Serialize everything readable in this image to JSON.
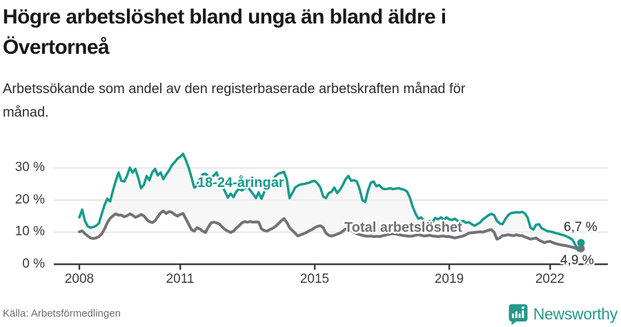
{
  "header": {
    "title_lines": [
      "Högre arbetslöshet bland unga än bland äldre i",
      "Övertorneå"
    ],
    "subtitle_lines": [
      "Arbetssökande som andel av den registerbaserade arbetskraften månad för",
      "månad."
    ]
  },
  "colors": {
    "youth": "#159a8d",
    "total": "#717176",
    "total_label": "#6e6e73",
    "band": "#f1f1f2",
    "grid": "#e4e4e4",
    "axis": "#3b3b3b",
    "brand": "#27988b",
    "end_label_text": "#2b2b2b"
  },
  "chart_data": {
    "type": "line",
    "title": "Högre arbetslöshet bland unga än bland äldre i Övertorneå",
    "subtitle": "Arbetssökande som andel av den registerbaserade arbetskraften månad för månad.",
    "x_unit": "month",
    "x_start": "2008-01",
    "x_end": "2022-12",
    "x_tick_labels": [
      "2008",
      "2011",
      "2015",
      "2019",
      "2022"
    ],
    "x_tick_years": [
      2008,
      2011,
      2015,
      2019,
      2022
    ],
    "y_tick_labels": [
      "30 %",
      "20 %",
      "10 %",
      "0 %"
    ],
    "y_ticks": [
      30,
      20,
      10,
      0
    ],
    "ylim": [
      0,
      36
    ],
    "grid": "horizontal",
    "series": [
      {
        "name": "18-24-åringar",
        "color": "#159a8d",
        "end_label": "6,7 %",
        "end_value": 6.7,
        "values": [
          14.6,
          17.0,
          13.5,
          11.8,
          11.4,
          11.6,
          12.0,
          12.8,
          15.7,
          18.5,
          20.4,
          19.6,
          23.0,
          26.0,
          28.6,
          26.0,
          25.8,
          27.5,
          30.1,
          28.6,
          29.7,
          27.0,
          23.7,
          24.7,
          27.5,
          26.2,
          28.6,
          29.7,
          27.7,
          28.6,
          26.5,
          28.0,
          29.2,
          30.8,
          31.8,
          32.9,
          33.5,
          34.4,
          32.5,
          30.1,
          27.1,
          23.9,
          24.3,
          26.9,
          28.0,
          28.2,
          27.5,
          26.9,
          27.7,
          28.6,
          26.0,
          24.3,
          22.6,
          20.8,
          22.0,
          20.9,
          22.6,
          23.5,
          23.0,
          23.7,
          24.3,
          23.0,
          21.9,
          20.6,
          22.4,
          20.4,
          22.6,
          24.3,
          25.4,
          26.0,
          27.5,
          28.2,
          28.5,
          28.8,
          26.5,
          20.6,
          22.2,
          23.9,
          24.5,
          24.9,
          25.0,
          25.2,
          25.4,
          25.8,
          26.0,
          25.2,
          23.9,
          21.1,
          20.6,
          22.2,
          22.6,
          23.9,
          22.2,
          23.2,
          24.7,
          26.5,
          27.5,
          26.0,
          26.2,
          25.8,
          23.5,
          20.0,
          19.4,
          23.0,
          25.4,
          25.8,
          24.3,
          24.7,
          23.7,
          23.4,
          23.5,
          23.7,
          23.4,
          23.6,
          23.7,
          23.4,
          23.2,
          22.6,
          20.6,
          17.8,
          15.7,
          14.2,
          14.6,
          13.5,
          12.9,
          13.5,
          13.1,
          14.4,
          14.0,
          14.6,
          13.8,
          14.6,
          14.0,
          13.8,
          14.2,
          13.5,
          13.2,
          13.5,
          12.9,
          13.1,
          12.5,
          12.0,
          12.5,
          13.0,
          14.0,
          14.6,
          15.3,
          15.7,
          15.3,
          13.5,
          12.7,
          12.5,
          14.0,
          15.3,
          15.9,
          16.1,
          16.2,
          16.1,
          16.3,
          15.8,
          14.5,
          11.4,
          10.8,
          12.3,
          12.5,
          11.2,
          10.8,
          10.3,
          10.2,
          10.0,
          9.7,
          9.5,
          9.2,
          9.0,
          8.6,
          8.2,
          7.6,
          6.0,
          4.3,
          6.7
        ]
      },
      {
        "name": "Total arbetslöshet",
        "color": "#717176",
        "end_label": "4,9 %",
        "end_value": 4.9,
        "values": [
          10.1,
          10.4,
          9.5,
          8.8,
          8.2,
          8.0,
          8.2,
          8.6,
          9.5,
          11.0,
          13.0,
          14.3,
          15.1,
          15.7,
          15.3,
          15.3,
          14.8,
          15.1,
          15.7,
          15.3,
          14.6,
          15.0,
          15.5,
          15.1,
          14.0,
          13.3,
          13.0,
          13.5,
          14.8,
          16.0,
          16.6,
          15.8,
          16.4,
          16.2,
          15.5,
          15.0,
          15.5,
          15.8,
          14.2,
          12.5,
          10.8,
          10.3,
          11.4,
          11.0,
          10.3,
          9.9,
          11.5,
          12.9,
          13.1,
          12.9,
          12.5,
          11.6,
          10.8,
          10.3,
          9.9,
          10.3,
          11.2,
          12.0,
          12.9,
          13.3,
          13.1,
          13.3,
          13.1,
          13.2,
          13.1,
          11.0,
          10.5,
          10.3,
          10.8,
          11.2,
          11.8,
          12.6,
          13.5,
          14.2,
          13.1,
          11.4,
          10.5,
          9.7,
          8.8,
          9.2,
          9.5,
          9.9,
          10.4,
          10.8,
          11.4,
          11.8,
          12.0,
          11.4,
          9.7,
          9.0,
          8.8,
          9.0,
          9.4,
          9.7,
          10.3,
          11.0,
          11.0,
          10.5,
          10.0,
          9.5,
          9.2,
          9.0,
          8.8,
          8.7,
          8.8,
          8.6,
          8.7,
          8.6,
          8.8,
          9.0,
          9.2,
          9.4,
          9.5,
          9.4,
          9.2,
          9.0,
          8.9,
          8.8,
          8.7,
          8.8,
          9.0,
          9.2,
          9.0,
          8.8,
          8.9,
          9.0,
          8.8,
          8.7,
          8.6,
          8.7,
          8.8,
          8.6,
          8.6,
          8.4,
          8.2,
          8.4,
          8.6,
          8.8,
          9.2,
          9.7,
          9.8,
          9.9,
          10.0,
          10.1,
          10.0,
          10.3,
          10.6,
          10.8,
          10.0,
          7.8,
          8.2,
          8.9,
          9.0,
          9.2,
          9.0,
          8.9,
          9.2,
          8.9,
          8.9,
          8.5,
          8.2,
          7.8,
          8.0,
          8.2,
          7.5,
          7.1,
          6.7,
          7.0,
          7.1,
          6.7,
          6.4,
          6.2,
          6.0,
          5.9,
          5.7,
          5.5,
          5.3,
          5.0,
          4.6,
          4.9
        ]
      }
    ],
    "legend_position": "inline-labels"
  },
  "footer": {
    "source": "Källa: Arbetsförmedlingen",
    "brand": "Newsworthy",
    "brand_icon": "speech-bubble-bar-chart"
  }
}
